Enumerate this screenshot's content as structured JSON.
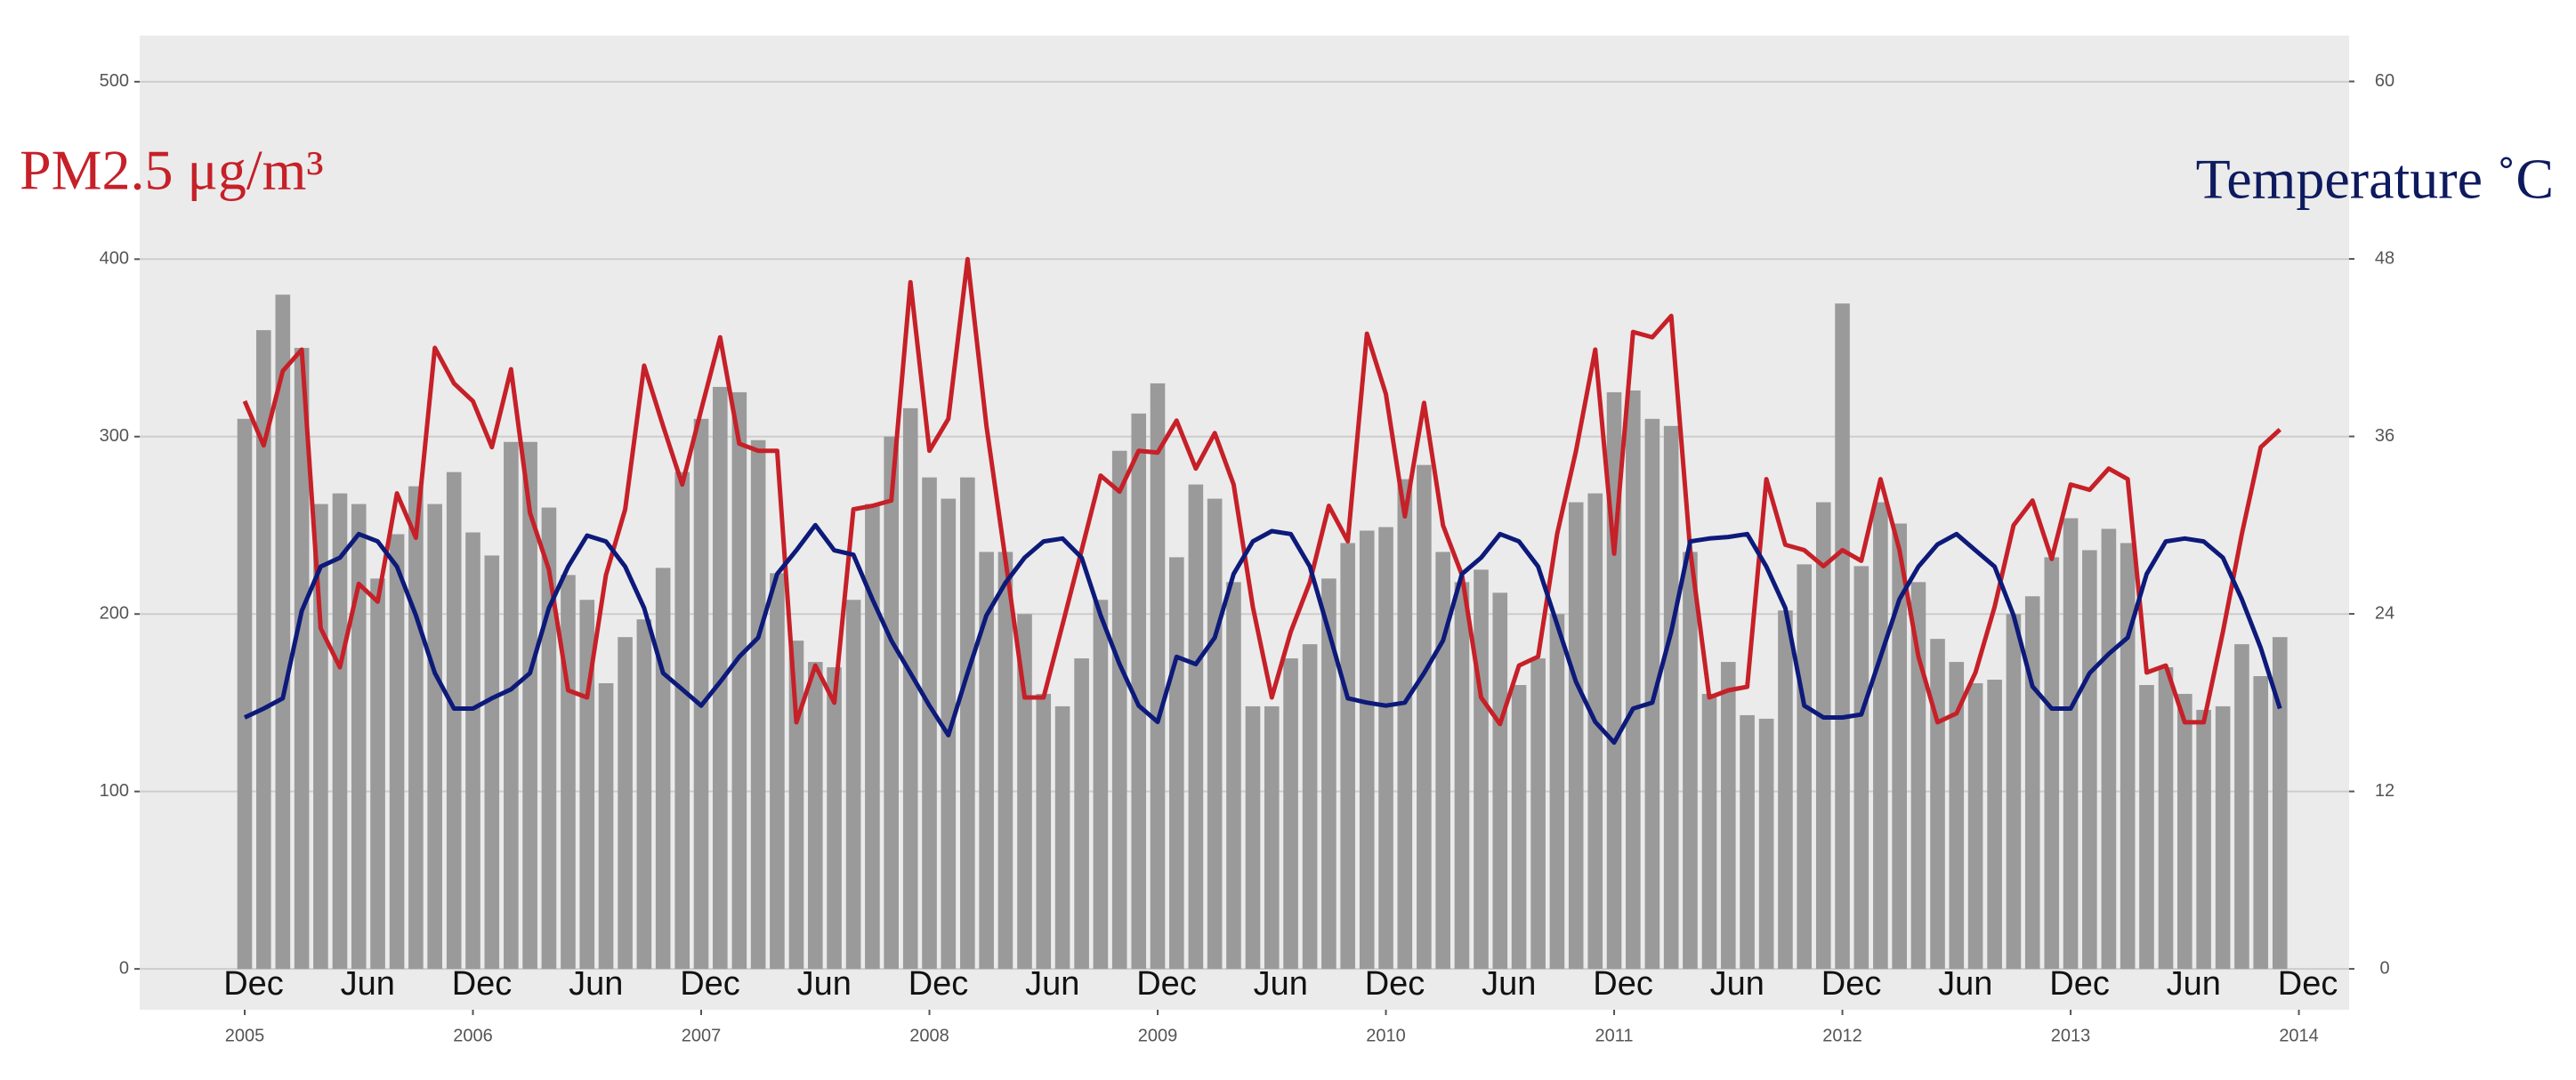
{
  "chart_data": {
    "type": "bar",
    "ylabel": "PM2.5 μg/m³",
    "y2label": "Temperature ˚C",
    "x": [
      2005,
      2005.083,
      2005.167,
      2005.25,
      2005.333,
      2005.417,
      2005.5,
      2005.583,
      2005.667,
      2005.75,
      2005.833,
      2005.917,
      2006,
      2006.083,
      2006.167,
      2006.25,
      2006.333,
      2006.417,
      2006.5,
      2006.583,
      2006.667,
      2006.75,
      2006.833,
      2006.917,
      2007,
      2007.083,
      2007.167,
      2007.25,
      2007.333,
      2007.417,
      2007.5,
      2007.583,
      2007.667,
      2007.75,
      2007.833,
      2007.917,
      2008,
      2008.083,
      2008.167,
      2008.25,
      2008.333,
      2008.417,
      2008.5,
      2008.583,
      2008.667,
      2008.75,
      2008.833,
      2008.917,
      2009,
      2009.083,
      2009.167,
      2009.25,
      2009.333,
      2009.417,
      2009.5,
      2009.583,
      2009.667,
      2009.75,
      2009.833,
      2009.917,
      2010,
      2010.083,
      2010.167,
      2010.25,
      2010.333,
      2010.417,
      2010.5,
      2010.583,
      2010.667,
      2010.75,
      2010.833,
      2010.917,
      2011,
      2011.083,
      2011.167,
      2011.25,
      2011.333,
      2011.417,
      2011.5,
      2011.583,
      2011.667,
      2011.75,
      2011.833,
      2011.917,
      2012,
      2012.083,
      2012.167,
      2012.25,
      2012.333,
      2012.417,
      2012.5,
      2012.583,
      2012.667,
      2012.75,
      2012.833,
      2012.917,
      2013,
      2013.083,
      2013.167,
      2013.25,
      2013.333,
      2013.417,
      2013.5,
      2013.583,
      2013.667,
      2013.75,
      2013.833,
      2013.917
    ],
    "xlim": [
      2004.54,
      2014.22
    ],
    "xticks": [
      2005,
      2006,
      2007,
      2008,
      2009,
      2010,
      2011,
      2012,
      2013,
      2014
    ],
    "month_ticks": [
      {
        "value": 2005,
        "label": "Dec"
      },
      {
        "value": 2005.5,
        "label": "Jun"
      },
      {
        "value": 2006,
        "label": "Dec"
      },
      {
        "value": 2006.5,
        "label": "Jun"
      },
      {
        "value": 2007,
        "label": "Dec"
      },
      {
        "value": 2007.5,
        "label": "Jun"
      },
      {
        "value": 2008,
        "label": "Dec"
      },
      {
        "value": 2008.5,
        "label": "Jun"
      },
      {
        "value": 2009,
        "label": "Dec"
      },
      {
        "value": 2009.5,
        "label": "Jun"
      },
      {
        "value": 2010,
        "label": "Dec"
      },
      {
        "value": 2010.5,
        "label": "Jun"
      },
      {
        "value": 2011,
        "label": "Dec"
      },
      {
        "value": 2011.5,
        "label": "Jun"
      },
      {
        "value": 2012,
        "label": "Dec"
      },
      {
        "value": 2012.5,
        "label": "Jun"
      },
      {
        "value": 2013,
        "label": "Dec"
      },
      {
        "value": 2013.5,
        "label": "Jun"
      },
      {
        "value": 2014,
        "label": "Dec"
      }
    ],
    "ylim": [
      -23,
      526
    ],
    "yticks": [
      0,
      100,
      200,
      300,
      400,
      500
    ],
    "y2lim": [
      -2.76,
      63.1
    ],
    "y2ticks": [
      0,
      12,
      24,
      36,
      48,
      60
    ],
    "grid": true,
    "series": [
      {
        "type": "bar",
        "color": "#9a9a9a",
        "values": [
          310,
          360,
          380,
          350,
          262,
          268,
          262,
          220,
          245,
          272,
          262,
          280,
          246,
          233,
          297,
          297,
          260,
          222,
          208,
          161,
          187,
          197,
          226,
          280,
          310,
          328,
          325,
          298,
          223,
          185,
          173,
          170,
          208,
          262,
          300,
          316,
          277,
          265,
          277,
          235,
          235,
          200,
          155,
          148,
          175,
          208,
          292,
          313,
          330,
          232,
          273,
          265,
          218,
          148,
          148,
          175,
          183,
          220,
          240,
          247,
          249,
          276,
          284,
          235,
          218,
          225,
          212,
          160,
          175,
          200,
          263,
          268,
          325,
          326,
          310,
          306,
          235,
          155,
          173,
          143,
          141,
          202,
          228,
          263,
          375,
          227,
          263,
          251,
          218,
          186,
          173,
          161,
          163,
          200,
          210,
          232,
          254,
          236,
          248,
          240,
          160,
          170,
          155,
          146,
          148,
          183,
          165,
          187
        ]
      },
      {
        "type": "line",
        "color": "#c62028",
        "values": [
          320,
          295,
          337,
          349,
          192,
          170,
          217,
          207,
          268,
          243,
          350,
          330,
          320,
          294,
          338,
          257,
          225,
          157,
          153,
          222,
          259,
          340,
          306,
          273,
          315,
          356,
          296,
          292,
          292,
          139,
          171,
          150,
          259,
          261,
          264,
          387,
          292,
          310,
          400,
          306,
          231,
          153,
          153,
          194,
          236,
          278,
          269,
          292,
          291,
          309,
          282,
          302,
          273,
          204,
          153,
          190,
          218,
          261,
          241,
          358,
          324,
          255,
          319,
          250,
          222,
          153,
          138,
          171,
          176,
          245,
          292,
          349,
          234,
          359,
          356,
          368,
          236,
          153,
          157,
          159,
          276,
          239,
          236,
          227,
          236,
          230,
          276,
          236,
          176,
          139,
          144,
          167,
          204,
          250,
          264,
          231,
          273,
          270,
          282,
          276,
          167,
          171,
          139,
          139,
          190,
          245,
          294,
          304
        ]
      },
      {
        "type": "line",
        "axis": "y2",
        "color": "#0d1a7a",
        "values": [
          17,
          17.6,
          18.3,
          24.2,
          27.2,
          27.8,
          29.4,
          28.9,
          27.2,
          23.9,
          20,
          17.6,
          17.6,
          18.3,
          18.9,
          20,
          24.4,
          27.2,
          29.3,
          28.9,
          27.2,
          24.4,
          20,
          18.9,
          17.8,
          19.4,
          21.1,
          22.4,
          26.7,
          28.3,
          30,
          28.3,
          28,
          25,
          22.2,
          20,
          17.8,
          15.8,
          20,
          23.9,
          26.1,
          27.8,
          28.9,
          29.1,
          27.8,
          23.9,
          20.6,
          17.8,
          16.7,
          21.1,
          20.6,
          22.4,
          26.7,
          28.9,
          29.6,
          29.4,
          27.2,
          22.8,
          18.3,
          18,
          17.8,
          18,
          20,
          22.2,
          26.7,
          27.8,
          29.4,
          28.9,
          27.2,
          23.3,
          19.4,
          16.7,
          15.3,
          17.6,
          18,
          22.8,
          28.9,
          29.1,
          29.2,
          29.4,
          27.2,
          24.4,
          17.8,
          17,
          17,
          17.2,
          21.1,
          25,
          27.2,
          28.7,
          29.4,
          28.3,
          27.2,
          23.9,
          19.1,
          17.6,
          17.6,
          20,
          21.3,
          22.4,
          26.7,
          28.9,
          29.1,
          28.9,
          27.8,
          25,
          21.7,
          17.6
        ]
      }
    ]
  }
}
